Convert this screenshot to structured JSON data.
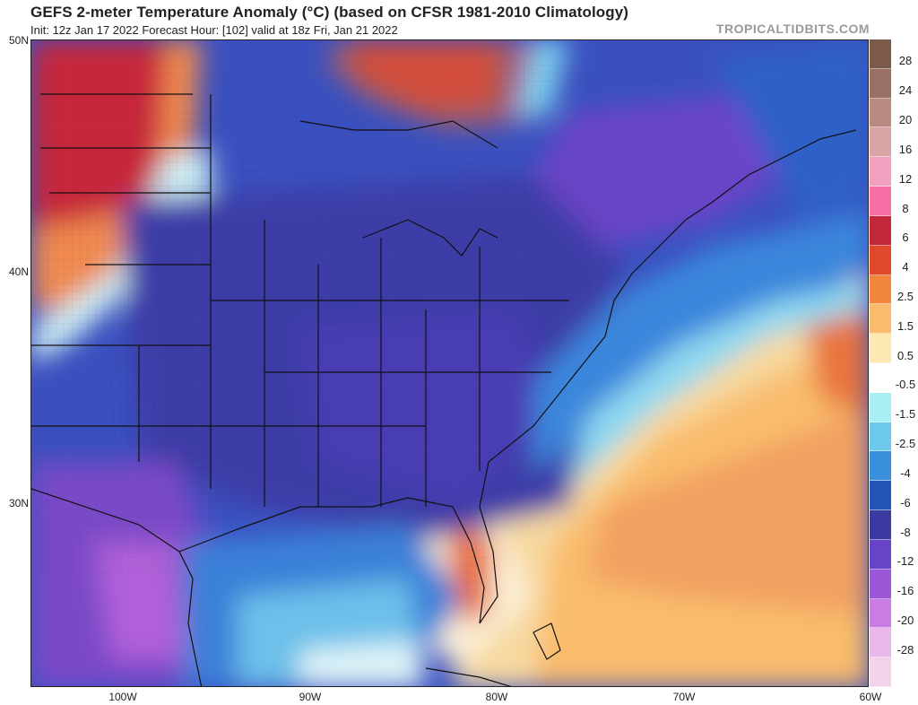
{
  "header": {
    "title": "GEFS 2-meter Temperature Anomaly (°C) (based on CFSR 1981-2010 Climatology)",
    "subtitle": "Init: 12z Jan 17 2022   Forecast Hour: [102]   valid at 18z Fri, Jan 21 2022",
    "brand": "TROPICALTIDBITS.COM"
  },
  "map": {
    "region": "Eastern United States and western Atlantic",
    "lat_labels": [
      "50N",
      "40N",
      "30N"
    ],
    "lon_labels": [
      "100W",
      "90W",
      "80W",
      "70W",
      "60W"
    ],
    "lat_range": [
      22,
      50
    ],
    "lon_range": [
      -105,
      -60
    ]
  },
  "colorbar": {
    "labels": [
      "28",
      "24",
      "20",
      "16",
      "12",
      "8",
      "6",
      "4",
      "2.5",
      "1.5",
      "0.5",
      "-0.5",
      "-1.5",
      "-2.5",
      "-4",
      "-6",
      "-8",
      "-12",
      "-16",
      "-20",
      "-28"
    ],
    "colors": [
      "#7b5a4a",
      "#9b7064",
      "#b98a82",
      "#d9a4a4",
      "#f1a0c0",
      "#f56ea6",
      "#c2283a",
      "#e0482c",
      "#f2863c",
      "#f9bc6c",
      "#fde8b4",
      "#ffffff",
      "#a8eef2",
      "#6cc8ec",
      "#3a8fdc",
      "#2454b8",
      "#3a3aa0",
      "#6a44c8",
      "#9a58d8",
      "#c87ce4",
      "#eab8e8",
      "#f4d2ec"
    ]
  }
}
